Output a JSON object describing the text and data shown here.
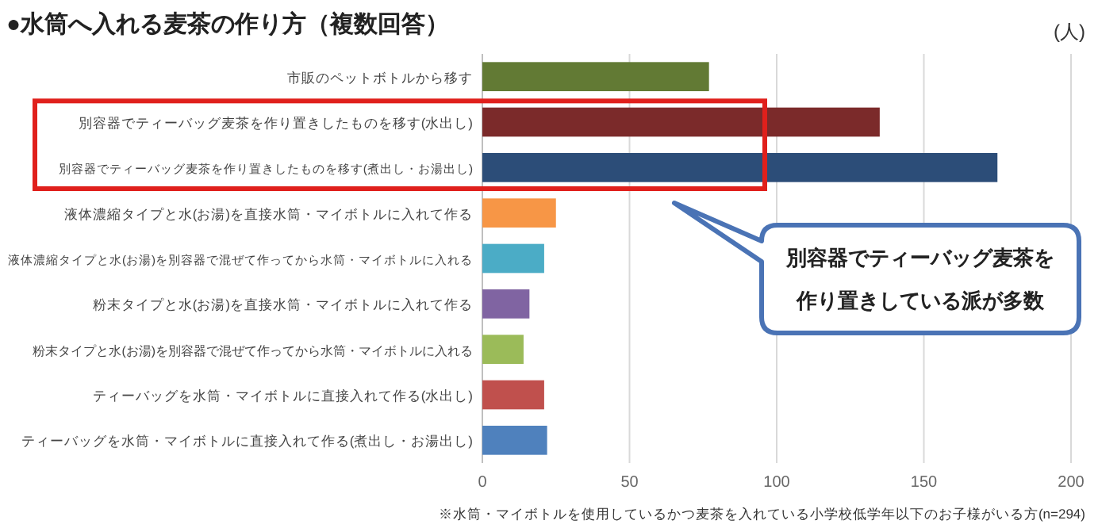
{
  "chart_data": {
    "type": "bar",
    "orientation": "horizontal",
    "title": "●水筒へ入れる麦茶の作り方（複数回答）",
    "xlabel": "(人)",
    "categories": [
      "市販のペットボトルから移す",
      "別容器でティーバッグ麦茶を作り置きしたものを移す(水出し)",
      "別容器でティーバッグ麦茶を作り置きしたものを移す(煮出し・お湯出し)",
      "液体濃縮タイプと水(お湯)を直接水筒・マイボトルに入れて作る",
      "液体濃縮タイプと水(お湯)を別容器で混ぜて作ってから水筒・マイボトルに入れる",
      "粉末タイプと水(お湯)を直接水筒・マイボトルに入れて作る",
      "粉末タイプと水(お湯)を別容器で混ぜて作ってから水筒・マイボトルに入れる",
      "ティーバッグを水筒・マイボトルに直接入れて作る(水出し)",
      "ティーバッグを水筒・マイボトルに直接入れて作る(煮出し・お湯出し)"
    ],
    "values": [
      77,
      135,
      175,
      25,
      21,
      16,
      14,
      21,
      22
    ],
    "colors": [
      "#627a34",
      "#7b2a2a",
      "#2c4d78",
      "#f79646",
      "#4bacc6",
      "#8064a2",
      "#9bbb59",
      "#c0504d",
      "#4f81bd"
    ],
    "xlim": [
      0,
      200
    ],
    "xticks": [
      0,
      50,
      100,
      150,
      200
    ],
    "grid": "x",
    "annotations": [
      "別容器でティーバッグ麦茶を",
      "作り置きしている派が多数",
      "※水筒・マイボトルを使用しているかつ麦茶を入れている小学校低学年以下のお子様がいる方(n=294)"
    ]
  }
}
